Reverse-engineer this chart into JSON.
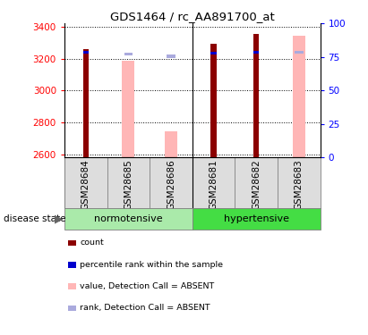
{
  "title": "GDS1464 / rc_AA891700_at",
  "samples": [
    "GSM28684",
    "GSM28685",
    "GSM28686",
    "GSM28681",
    "GSM28682",
    "GSM28683"
  ],
  "ylim_left": [
    2580,
    3420
  ],
  "ylim_right": [
    0,
    100
  ],
  "yticks_left": [
    2600,
    2800,
    3000,
    3200,
    3400
  ],
  "yticks_right": [
    0,
    25,
    50,
    75,
    100
  ],
  "count_values": [
    3260,
    null,
    null,
    3295,
    3355,
    null
  ],
  "rank_values": [
    3230,
    null,
    null,
    3225,
    3230,
    null
  ],
  "absent_value_values": [
    null,
    3185,
    2745,
    null,
    null,
    3345
  ],
  "absent_rank_values": [
    null,
    3220,
    3205,
    null,
    null,
    3230
  ],
  "color_count": "#8B0000",
  "color_rank": "#0000CD",
  "color_absent_value": "#FFB6B6",
  "color_absent_rank": "#AAAADD",
  "normotensive_color": "#AAEAAA",
  "hypertensive_color": "#44DD44",
  "sample_bg_color": "#DDDDDD",
  "legend_items": [
    {
      "label": "count",
      "color": "#8B0000"
    },
    {
      "label": "percentile rank within the sample",
      "color": "#0000CD"
    },
    {
      "label": "value, Detection Call = ABSENT",
      "color": "#FFB6B6"
    },
    {
      "label": "rank, Detection Call = ABSENT",
      "color": "#AAAADD"
    }
  ]
}
